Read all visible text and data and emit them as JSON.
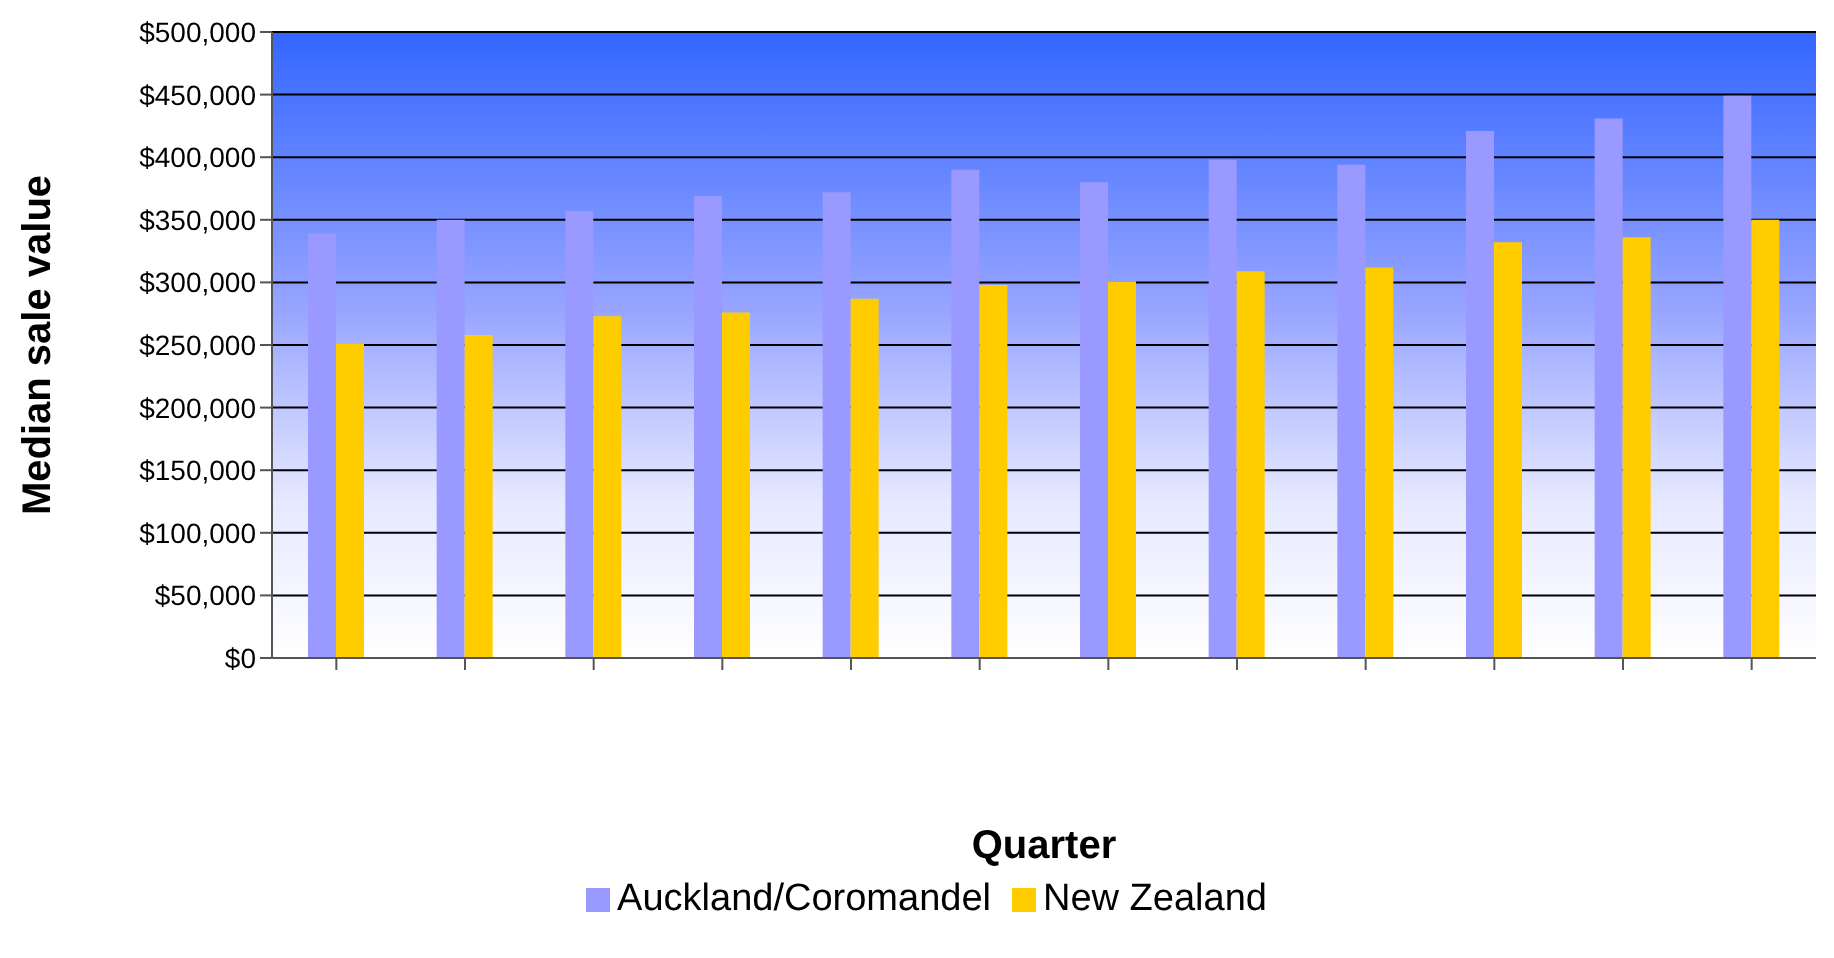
{
  "chart_data": {
    "type": "bar",
    "xlabel": "Quarter",
    "ylabel": "Median sale value",
    "categories": [
      null,
      null,
      null,
      null,
      null,
      null,
      null,
      null,
      null,
      null,
      null,
      null
    ],
    "series": [
      {
        "name": "Auckland/Coromandel",
        "color": "#9999ff",
        "values": [
          339000,
          350000,
          357000,
          369000,
          372000,
          390000,
          380000,
          398000,
          394000,
          421000,
          431000,
          449000
        ]
      },
      {
        "name": "New Zealand",
        "color": "#ffcc00",
        "values": [
          251000,
          258000,
          273000,
          276000,
          287000,
          298000,
          301000,
          309000,
          312000,
          332000,
          336000,
          350000
        ]
      }
    ],
    "ylim": [
      0,
      500000
    ],
    "yticks": [
      {
        "value": 0,
        "label": "$0"
      },
      {
        "value": 50000,
        "label": "$50,000"
      },
      {
        "value": 100000,
        "label": "$100,000"
      },
      {
        "value": 150000,
        "label": "$150,000"
      },
      {
        "value": 200000,
        "label": "$200,000"
      },
      {
        "value": 250000,
        "label": "$250,000"
      },
      {
        "value": 300000,
        "label": "$300,000"
      },
      {
        "value": 350000,
        "label": "$350,000"
      },
      {
        "value": 400000,
        "label": "$400,000"
      },
      {
        "value": 450000,
        "label": "$450,000"
      },
      {
        "value": 500000,
        "label": "$500,000"
      }
    ],
    "grid": "y",
    "legend": "bottom"
  }
}
